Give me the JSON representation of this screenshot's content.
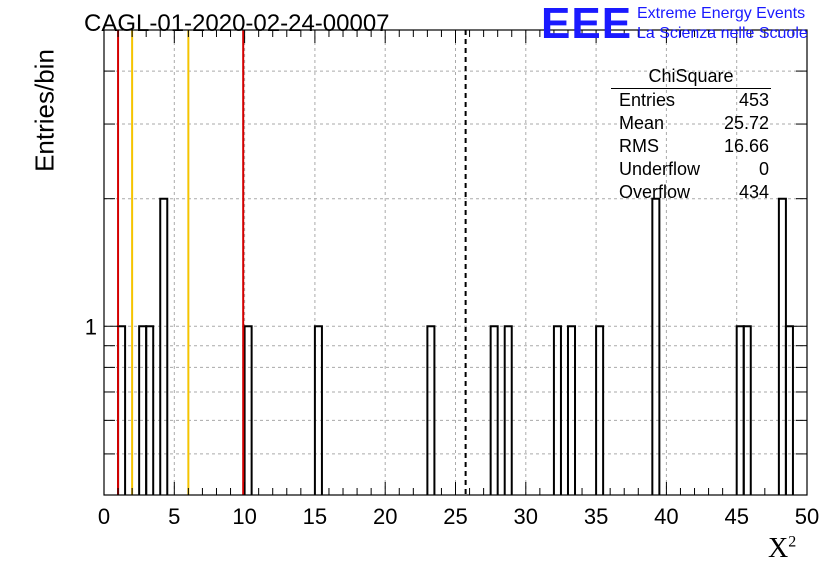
{
  "title": "CAGL-01-2020-02-24-00007",
  "logo": {
    "mark": "EEE",
    "line1": "Extreme Energy Events",
    "line2": "La Scienza nelle Scuole",
    "color": "#1a1aff"
  },
  "stats": {
    "name": "ChiSquare",
    "rows": [
      {
        "label": "Entries",
        "value": "453"
      },
      {
        "label": "Mean",
        "value": "25.72"
      },
      {
        "label": "RMS",
        "value": "16.66"
      },
      {
        "label": "Underflow",
        "value": "0"
      },
      {
        "label": "Overflow",
        "value": "434"
      }
    ]
  },
  "chart_data": {
    "type": "bar",
    "histogram": true,
    "ylabel": "Entries/bin",
    "xlabel": "X",
    "xlabel_superscript": "2",
    "log_y": true,
    "xlim": [
      0,
      50
    ],
    "ylim": [
      0.4,
      5
    ],
    "bin_width": 0.5,
    "x_ticks": [
      0,
      5,
      10,
      15,
      20,
      25,
      30,
      35,
      40,
      45,
      50
    ],
    "y_tick_labels": [
      {
        "value": 1,
        "label": "1"
      }
    ],
    "grid": true,
    "bins": [
      {
        "x": 1.0,
        "value": 1
      },
      {
        "x": 2.5,
        "value": 1
      },
      {
        "x": 3.0,
        "value": 1
      },
      {
        "x": 4.0,
        "value": 2
      },
      {
        "x": 10.0,
        "value": 1
      },
      {
        "x": 15.0,
        "value": 1
      },
      {
        "x": 23.0,
        "value": 1
      },
      {
        "x": 27.5,
        "value": 1
      },
      {
        "x": 28.5,
        "value": 1
      },
      {
        "x": 32.0,
        "value": 1
      },
      {
        "x": 33.0,
        "value": 1
      },
      {
        "x": 35.0,
        "value": 1
      },
      {
        "x": 39.0,
        "value": 2
      },
      {
        "x": 45.0,
        "value": 1
      },
      {
        "x": 45.5,
        "value": 1
      },
      {
        "x": 48.0,
        "value": 2
      },
      {
        "x": 48.5,
        "value": 1
      }
    ],
    "vertical_lines": [
      {
        "x": 1.0,
        "color": "#d40000",
        "style": "solid"
      },
      {
        "x": 2.0,
        "color": "#f5c400",
        "style": "solid"
      },
      {
        "x": 6.0,
        "color": "#f5c400",
        "style": "solid"
      },
      {
        "x": 9.9,
        "color": "#d40000",
        "style": "solid"
      },
      {
        "x": 25.72,
        "color": "#000000",
        "style": "dashed"
      }
    ]
  }
}
